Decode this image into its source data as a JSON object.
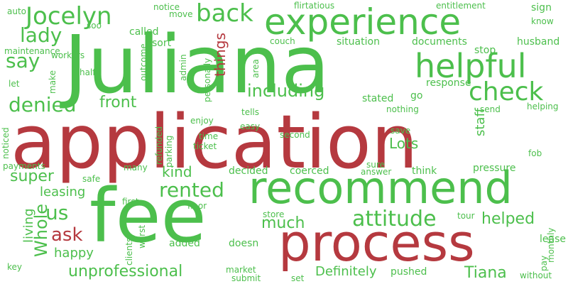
{
  "colors": {
    "red": "#b5393f",
    "green": "#4cbf4c",
    "background": "#ffffff"
  },
  "words": [
    {
      "text": "Juliana",
      "color": "green",
      "rotate": false
    },
    {
      "text": "application",
      "color": "red",
      "rotate": false
    },
    {
      "text": "fee",
      "color": "green",
      "rotate": false
    },
    {
      "text": "process",
      "color": "red",
      "rotate": false
    },
    {
      "text": "recommend",
      "color": "green",
      "rotate": false
    },
    {
      "text": "experience",
      "color": "green",
      "rotate": false
    },
    {
      "text": "helpful",
      "color": "green",
      "rotate": false
    },
    {
      "text": "check",
      "color": "green",
      "rotate": false
    },
    {
      "text": "Jocelyn",
      "color": "green",
      "rotate": false
    },
    {
      "text": "back",
      "color": "green",
      "rotate": false
    },
    {
      "text": "lady",
      "color": "green",
      "rotate": false
    },
    {
      "text": "say",
      "color": "green",
      "rotate": false
    },
    {
      "text": "denied",
      "color": "green",
      "rotate": false
    },
    {
      "text": "attitude",
      "color": "green",
      "rotate": false
    },
    {
      "text": "rented",
      "color": "green",
      "rotate": false
    },
    {
      "text": "including",
      "color": "green",
      "rotate": false
    },
    {
      "text": "front",
      "color": "green",
      "rotate": false
    },
    {
      "text": "ask",
      "color": "red",
      "rotate": false
    },
    {
      "text": "us",
      "color": "green",
      "rotate": false
    },
    {
      "text": "Whole",
      "color": "green",
      "rotate": true
    },
    {
      "text": "super",
      "color": "green",
      "rotate": false
    },
    {
      "text": "kind",
      "color": "green",
      "rotate": false
    },
    {
      "text": "much",
      "color": "green",
      "rotate": false
    },
    {
      "text": "helped",
      "color": "green",
      "rotate": false
    },
    {
      "text": "things",
      "color": "red",
      "rotate": true
    },
    {
      "text": "Lots",
      "color": "green",
      "rotate": false
    },
    {
      "text": "unprofessional",
      "color": "green",
      "rotate": false
    },
    {
      "text": "leasing",
      "color": "green",
      "rotate": false
    },
    {
      "text": "living",
      "color": "green",
      "rotate": true
    },
    {
      "text": "happy",
      "color": "green",
      "rotate": false
    },
    {
      "text": "staff",
      "color": "green",
      "rotate": true
    },
    {
      "text": "Tiana",
      "color": "green",
      "rotate": false
    },
    {
      "text": "Definitely",
      "color": "green",
      "rotate": false
    },
    {
      "text": "called",
      "color": "green",
      "rotate": false
    },
    {
      "text": "sort",
      "color": "green",
      "rotate": false
    },
    {
      "text": "notice",
      "color": "green",
      "rotate": false
    },
    {
      "text": "move",
      "color": "green",
      "rotate": false
    },
    {
      "text": "flirtatious",
      "color": "green",
      "rotate": false
    },
    {
      "text": "entitlement",
      "color": "green",
      "rotate": false
    },
    {
      "text": "sign",
      "color": "green",
      "rotate": false
    },
    {
      "text": "know",
      "color": "green",
      "rotate": false
    },
    {
      "text": "husband",
      "color": "green",
      "rotate": false
    },
    {
      "text": "auto",
      "color": "green",
      "rotate": false
    },
    {
      "text": "soo",
      "color": "green",
      "rotate": false
    },
    {
      "text": "maintenance",
      "color": "green",
      "rotate": false
    },
    {
      "text": "workers",
      "color": "green",
      "rotate": false
    },
    {
      "text": "make",
      "color": "green",
      "rotate": true
    },
    {
      "text": "half",
      "color": "green",
      "rotate": false
    },
    {
      "text": "let",
      "color": "green",
      "rotate": false
    },
    {
      "text": "outcome",
      "color": "green",
      "rotate": true
    },
    {
      "text": "admin",
      "color": "green",
      "rotate": true
    },
    {
      "text": "personally",
      "color": "green",
      "rotate": true
    },
    {
      "text": "area",
      "color": "green",
      "rotate": true
    },
    {
      "text": "couch",
      "color": "green",
      "rotate": false
    },
    {
      "text": "situation",
      "color": "green",
      "rotate": false
    },
    {
      "text": "documents",
      "color": "green",
      "rotate": false
    },
    {
      "text": "stop",
      "color": "green",
      "rotate": false
    },
    {
      "text": "response",
      "color": "green",
      "rotate": false
    },
    {
      "text": "go",
      "color": "green",
      "rotate": false
    },
    {
      "text": "stated",
      "color": "green",
      "rotate": false
    },
    {
      "text": "nothing",
      "color": "green",
      "rotate": false
    },
    {
      "text": "send",
      "color": "green",
      "rotate": false
    },
    {
      "text": "helping",
      "color": "green",
      "rotate": false
    },
    {
      "text": "tells",
      "color": "green",
      "rotate": false
    },
    {
      "text": "enjoy",
      "color": "green",
      "rotate": false
    },
    {
      "text": "easy",
      "color": "green",
      "rotate": false
    },
    {
      "text": "refunded",
      "color": "green",
      "rotate": true
    },
    {
      "text": "parking",
      "color": "green",
      "rotate": true
    },
    {
      "text": "time",
      "color": "green",
      "rotate": false
    },
    {
      "text": "ticket",
      "color": "green",
      "rotate": false
    },
    {
      "text": "second",
      "color": "green",
      "rotate": false
    },
    {
      "text": "save",
      "color": "green",
      "rotate": false
    },
    {
      "text": "fob",
      "color": "green",
      "rotate": false
    },
    {
      "text": "noticed",
      "color": "green",
      "rotate": true
    },
    {
      "text": "payments",
      "color": "green",
      "rotate": false
    },
    {
      "text": "many",
      "color": "green",
      "rotate": false
    },
    {
      "text": "safe",
      "color": "green",
      "rotate": false
    },
    {
      "text": "decided",
      "color": "green",
      "rotate": false
    },
    {
      "text": "coerced",
      "color": "green",
      "rotate": false
    },
    {
      "text": "sure",
      "color": "green",
      "rotate": false
    },
    {
      "text": "answer",
      "color": "green",
      "rotate": false
    },
    {
      "text": "think",
      "color": "green",
      "rotate": false
    },
    {
      "text": "pressure",
      "color": "green",
      "rotate": false
    },
    {
      "text": "first",
      "color": "green",
      "rotate": false
    },
    {
      "text": "floor",
      "color": "green",
      "rotate": false
    },
    {
      "text": "worst",
      "color": "green",
      "rotate": true
    },
    {
      "text": "clients",
      "color": "green",
      "rotate": true
    },
    {
      "text": "store",
      "color": "green",
      "rotate": false
    },
    {
      "text": "tour",
      "color": "green",
      "rotate": false
    },
    {
      "text": "lease",
      "color": "green",
      "rotate": false
    },
    {
      "text": "pay",
      "color": "green",
      "rotate": true
    },
    {
      "text": "monthly",
      "color": "green",
      "rotate": true
    },
    {
      "text": "added",
      "color": "green",
      "rotate": false
    },
    {
      "text": "doesn",
      "color": "green",
      "rotate": false
    },
    {
      "text": "key",
      "color": "green",
      "rotate": false
    },
    {
      "text": "market",
      "color": "green",
      "rotate": false
    },
    {
      "text": "submit",
      "color": "green",
      "rotate": false
    },
    {
      "text": "set",
      "color": "green",
      "rotate": false
    },
    {
      "text": "pushed",
      "color": "green",
      "rotate": false
    },
    {
      "text": "without",
      "color": "green",
      "rotate": false
    }
  ]
}
